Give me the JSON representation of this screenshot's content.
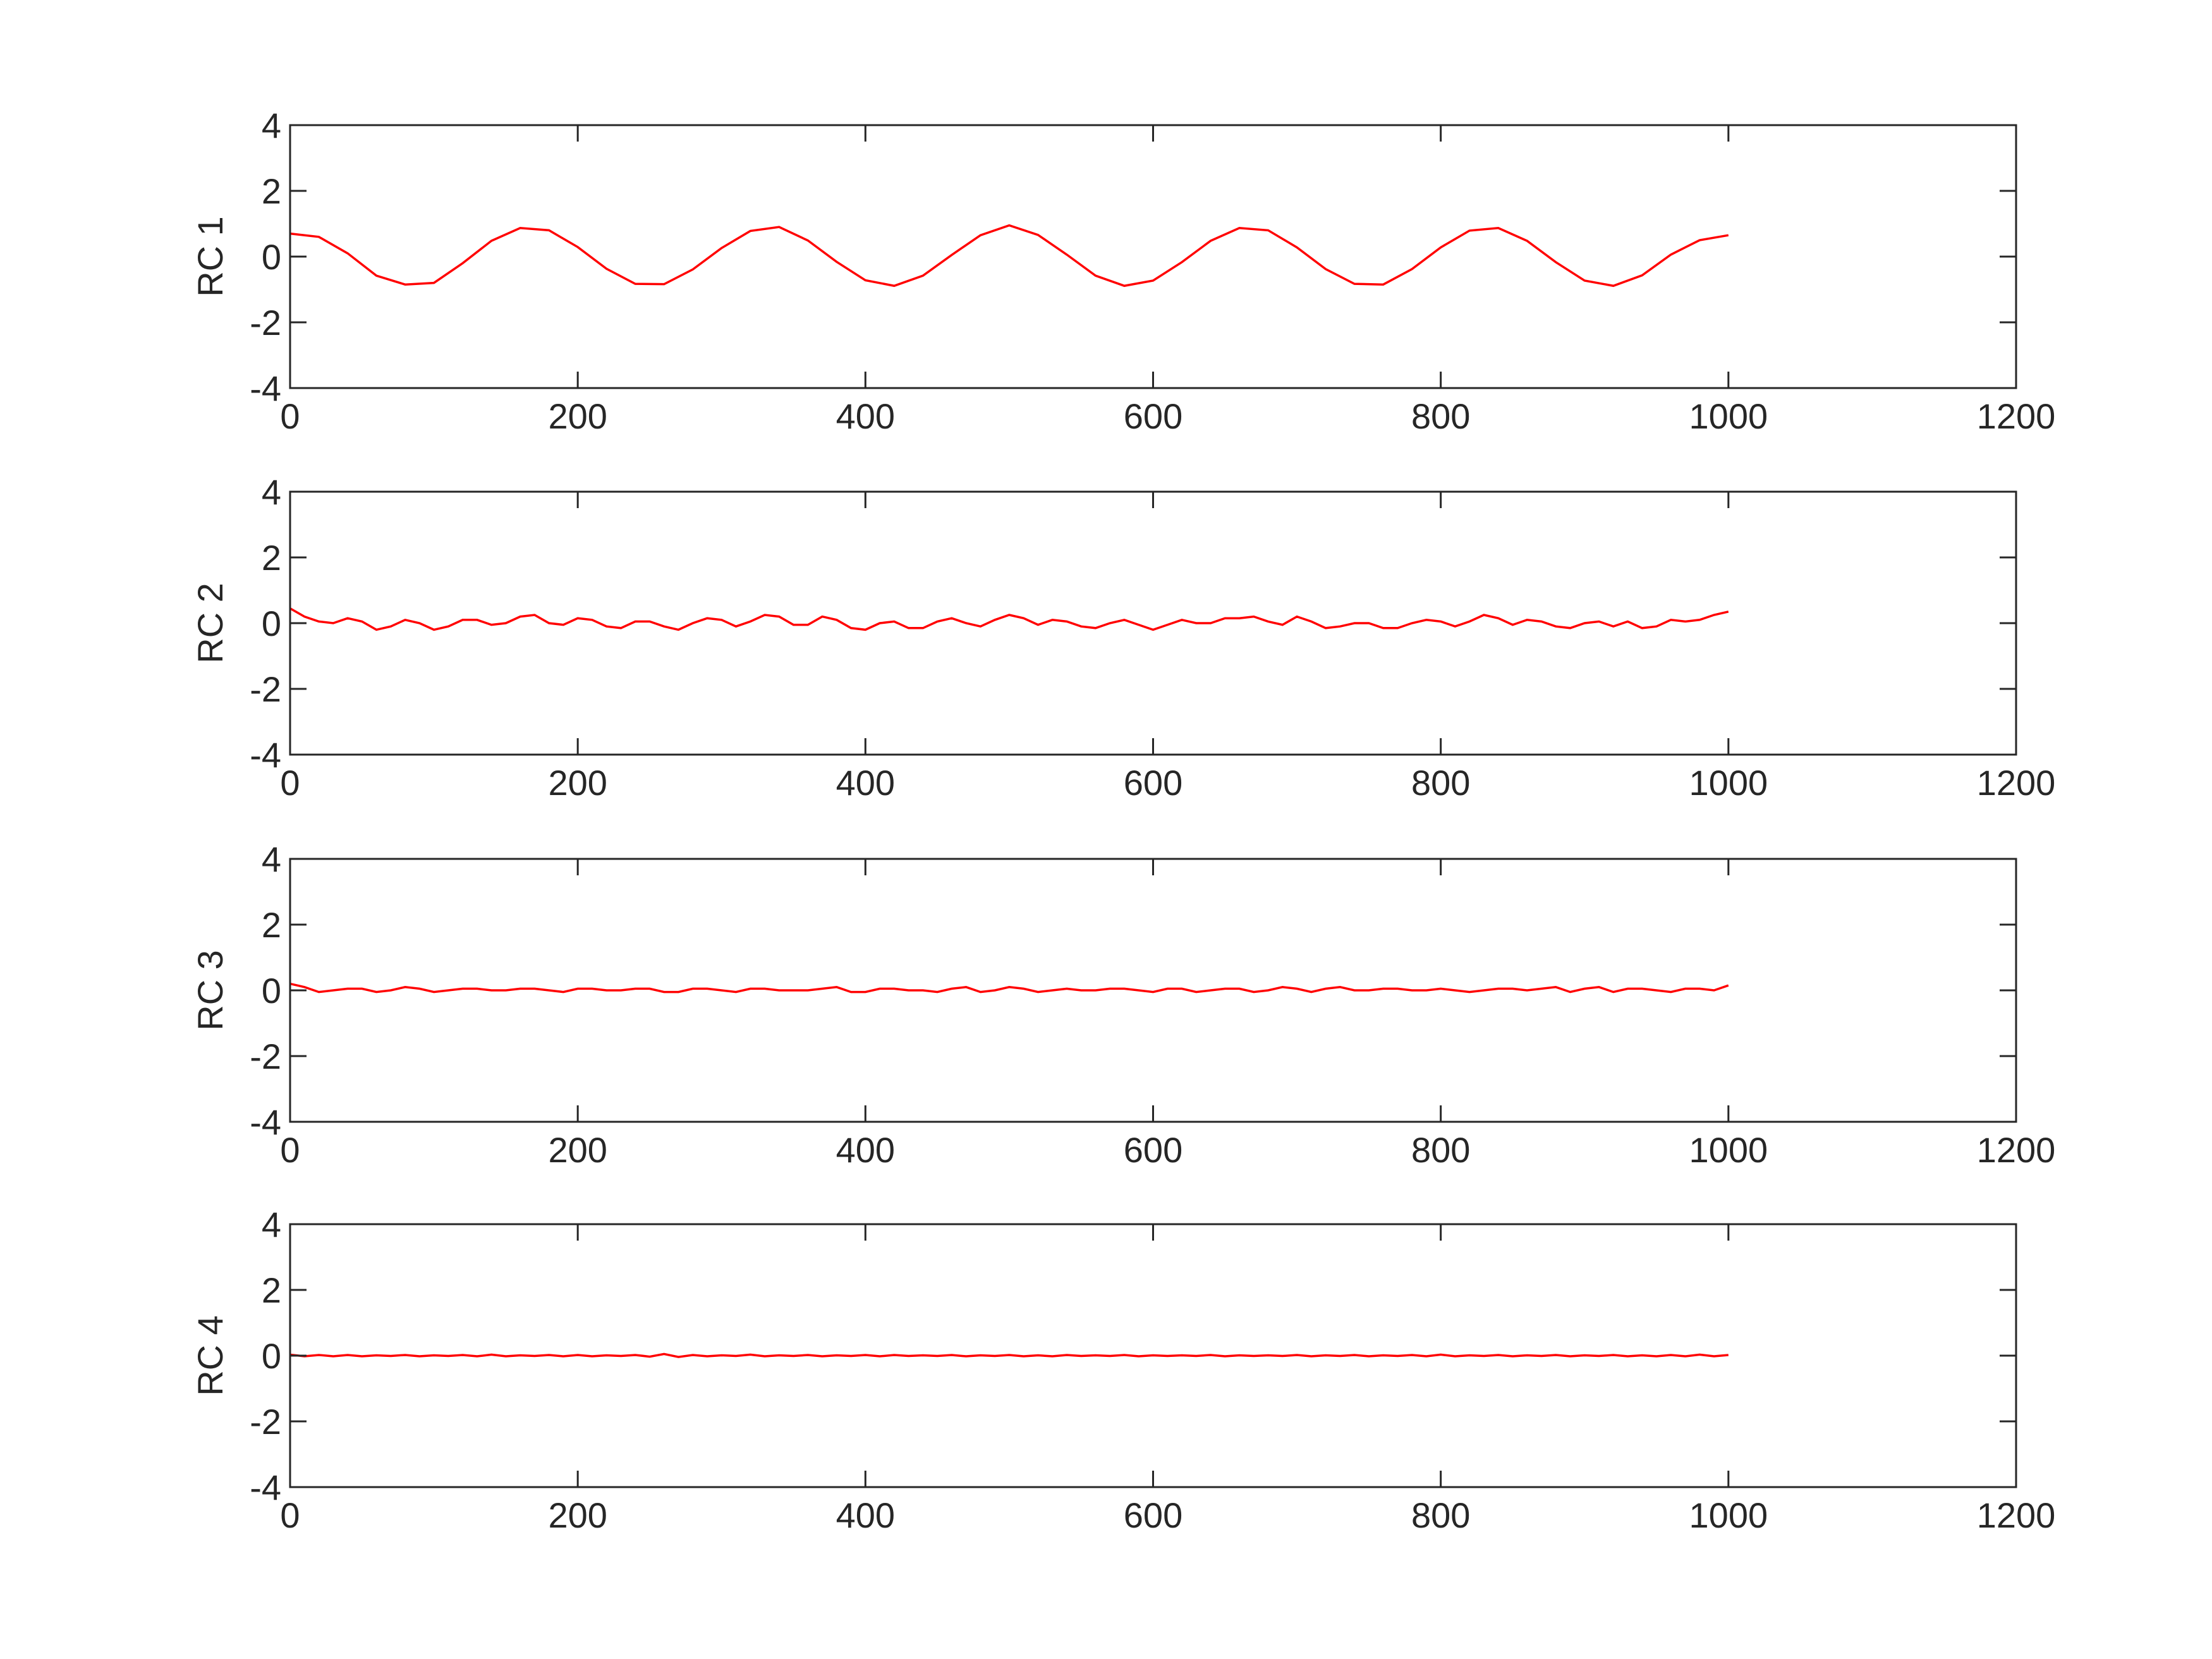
{
  "chart_data": [
    {
      "type": "line",
      "ylabel": "RC 1",
      "color": "#ff0000",
      "x": [
        0,
        20,
        40,
        60,
        80,
        100,
        120,
        140,
        160,
        180,
        200,
        220,
        240,
        260,
        280,
        300,
        320,
        340,
        360,
        380,
        400,
        420,
        440,
        460,
        480,
        500,
        520,
        540,
        560,
        580,
        600,
        620,
        640,
        660,
        680,
        700,
        720,
        740,
        760,
        780,
        800,
        820,
        840,
        860,
        880,
        900,
        920,
        940,
        960,
        980,
        1000
      ],
      "values": [
        0.7,
        0.6,
        0.1,
        -0.58,
        -0.85,
        -0.8,
        -0.2,
        0.48,
        0.87,
        0.8,
        0.29,
        -0.37,
        -0.83,
        -0.84,
        -0.39,
        0.26,
        0.78,
        0.9,
        0.49,
        -0.16,
        -0.72,
        -0.89,
        -0.58,
        0.05,
        0.65,
        0.95,
        0.66,
        0.06,
        -0.58,
        -0.89,
        -0.73,
        -0.17,
        0.48,
        0.87,
        0.8,
        0.28,
        -0.38,
        -0.83,
        -0.85,
        -0.38,
        0.28,
        0.79,
        0.87,
        0.48,
        -0.17,
        -0.73,
        -0.89,
        -0.57,
        0.06,
        0.5,
        0.65
      ],
      "xlim": [
        0,
        1200
      ],
      "xticks": [
        0,
        200,
        400,
        600,
        800,
        1000,
        1200
      ],
      "ylim": [
        -4,
        4
      ],
      "yticks": [
        -4,
        -2,
        0,
        2,
        4
      ]
    },
    {
      "type": "line",
      "ylabel": "RC 2",
      "color": "#ff0000",
      "x": [
        0,
        10,
        20,
        30,
        40,
        50,
        60,
        70,
        80,
        90,
        100,
        110,
        120,
        130,
        140,
        150,
        160,
        170,
        180,
        190,
        200,
        210,
        220,
        230,
        240,
        250,
        260,
        270,
        280,
        290,
        300,
        310,
        320,
        330,
        340,
        350,
        360,
        370,
        380,
        390,
        400,
        410,
        420,
        430,
        440,
        450,
        460,
        470,
        480,
        490,
        500,
        510,
        520,
        530,
        540,
        550,
        560,
        570,
        580,
        590,
        600,
        610,
        620,
        630,
        640,
        650,
        660,
        670,
        680,
        690,
        700,
        710,
        720,
        730,
        740,
        750,
        760,
        770,
        780,
        790,
        800,
        810,
        820,
        830,
        840,
        850,
        860,
        870,
        880,
        890,
        900,
        910,
        920,
        930,
        940,
        950,
        960,
        970,
        980,
        990,
        1000
      ],
      "values": [
        0.45,
        0.2,
        0.05,
        0.0,
        0.15,
        0.05,
        -0.2,
        -0.1,
        0.1,
        0.0,
        -0.2,
        -0.1,
        0.1,
        0.1,
        -0.05,
        0.0,
        0.2,
        0.25,
        0.0,
        -0.05,
        0.15,
        0.1,
        -0.1,
        -0.15,
        0.05,
        0.05,
        -0.1,
        -0.2,
        0.0,
        0.15,
        0.1,
        -0.1,
        0.05,
        0.25,
        0.2,
        -0.05,
        -0.05,
        0.2,
        0.1,
        -0.15,
        -0.2,
        0.0,
        0.05,
        -0.15,
        -0.15,
        0.05,
        0.15,
        0.0,
        -0.1,
        0.1,
        0.25,
        0.15,
        -0.05,
        0.1,
        0.05,
        -0.1,
        -0.15,
        0.0,
        0.1,
        -0.05,
        -0.2,
        -0.05,
        0.1,
        0.0,
        0.0,
        0.15,
        0.15,
        0.2,
        0.05,
        -0.05,
        0.2,
        0.05,
        -0.15,
        -0.1,
        0.0,
        0.0,
        -0.15,
        -0.15,
        0.0,
        0.1,
        0.05,
        -0.1,
        0.05,
        0.25,
        0.15,
        -0.05,
        0.1,
        0.05,
        -0.1,
        -0.15,
        0.0,
        0.05,
        -0.1,
        0.05,
        -0.15,
        -0.1,
        0.1,
        0.05,
        0.1,
        0.25,
        0.35
      ],
      "xlim": [
        0,
        1200
      ],
      "xticks": [
        0,
        200,
        400,
        600,
        800,
        1000,
        1200
      ],
      "ylim": [
        -4,
        4
      ],
      "yticks": [
        -4,
        -2,
        0,
        2,
        4
      ]
    },
    {
      "type": "line",
      "ylabel": "RC 3",
      "color": "#ff0000",
      "x": [
        0,
        10,
        20,
        30,
        40,
        50,
        60,
        70,
        80,
        90,
        100,
        110,
        120,
        130,
        140,
        150,
        160,
        170,
        180,
        190,
        200,
        210,
        220,
        230,
        240,
        250,
        260,
        270,
        280,
        290,
        300,
        310,
        320,
        330,
        340,
        350,
        360,
        370,
        380,
        390,
        400,
        410,
        420,
        430,
        440,
        450,
        460,
        470,
        480,
        490,
        500,
        510,
        520,
        530,
        540,
        550,
        560,
        570,
        580,
        590,
        600,
        610,
        620,
        630,
        640,
        650,
        660,
        670,
        680,
        690,
        700,
        710,
        720,
        730,
        740,
        750,
        760,
        770,
        780,
        790,
        800,
        810,
        820,
        830,
        840,
        850,
        860,
        870,
        880,
        890,
        900,
        910,
        920,
        930,
        940,
        950,
        960,
        970,
        980,
        990,
        1000
      ],
      "values": [
        0.2,
        0.1,
        -0.05,
        0.0,
        0.05,
        0.05,
        -0.05,
        0.0,
        0.1,
        0.05,
        -0.05,
        0.0,
        0.05,
        0.05,
        0.0,
        0.0,
        0.05,
        0.05,
        0.0,
        -0.05,
        0.05,
        0.05,
        0.0,
        0.0,
        0.05,
        0.05,
        -0.05,
        -0.05,
        0.05,
        0.05,
        0.0,
        -0.05,
        0.05,
        0.05,
        0.0,
        0.0,
        0.0,
        0.05,
        0.1,
        -0.05,
        -0.05,
        0.05,
        0.05,
        0.0,
        0.0,
        -0.05,
        0.05,
        0.1,
        -0.05,
        0.0,
        0.1,
        0.05,
        -0.05,
        0.0,
        0.05,
        0.0,
        0.0,
        0.05,
        0.05,
        0.0,
        -0.05,
        0.05,
        0.05,
        -0.05,
        0.0,
        0.05,
        0.05,
        -0.05,
        0.0,
        0.1,
        0.05,
        -0.05,
        0.05,
        0.1,
        0.0,
        0.0,
        0.05,
        0.05,
        0.0,
        0.0,
        0.05,
        0.0,
        -0.05,
        0.0,
        0.05,
        0.05,
        0.0,
        0.05,
        0.1,
        -0.05,
        0.05,
        0.1,
        -0.05,
        0.05,
        0.05,
        0.0,
        -0.05,
        0.05,
        0.05,
        0.0,
        0.15
      ],
      "xlim": [
        0,
        1200
      ],
      "xticks": [
        0,
        200,
        400,
        600,
        800,
        1000,
        1200
      ],
      "ylim": [
        -4,
        4
      ],
      "yticks": [
        -4,
        -2,
        0,
        2,
        4
      ]
    },
    {
      "type": "line",
      "ylabel": "RC 4",
      "color": "#ff0000",
      "x": [
        0,
        10,
        20,
        30,
        40,
        50,
        60,
        70,
        80,
        90,
        100,
        110,
        120,
        130,
        140,
        150,
        160,
        170,
        180,
        190,
        200,
        210,
        220,
        230,
        240,
        250,
        260,
        270,
        280,
        290,
        300,
        310,
        320,
        330,
        340,
        350,
        360,
        370,
        380,
        390,
        400,
        410,
        420,
        430,
        440,
        450,
        460,
        470,
        480,
        490,
        500,
        510,
        520,
        530,
        540,
        550,
        560,
        570,
        580,
        590,
        600,
        610,
        620,
        630,
        640,
        650,
        660,
        670,
        680,
        690,
        700,
        710,
        720,
        730,
        740,
        750,
        760,
        770,
        780,
        790,
        800,
        810,
        820,
        830,
        840,
        850,
        860,
        870,
        880,
        890,
        900,
        910,
        920,
        930,
        940,
        950,
        960,
        970,
        980,
        990,
        1000
      ],
      "values": [
        0.03,
        -0.02,
        0.02,
        -0.02,
        0.02,
        -0.02,
        0.01,
        -0.01,
        0.02,
        -0.02,
        0.01,
        -0.01,
        0.02,
        -0.02,
        0.03,
        -0.02,
        0.01,
        -0.01,
        0.02,
        -0.02,
        0.02,
        -0.02,
        0.01,
        -0.01,
        0.02,
        -0.03,
        0.05,
        -0.04,
        0.02,
        -0.02,
        0.01,
        -0.01,
        0.03,
        -0.02,
        0.01,
        -0.01,
        0.02,
        -0.02,
        0.01,
        -0.01,
        0.02,
        -0.02,
        0.02,
        -0.01,
        0.01,
        -0.01,
        0.02,
        -0.02,
        0.01,
        -0.01,
        0.02,
        -0.02,
        0.01,
        -0.02,
        0.02,
        -0.01,
        0.01,
        -0.01,
        0.02,
        -0.02,
        0.01,
        -0.01,
        0.01,
        -0.01,
        0.02,
        -0.02,
        0.01,
        -0.01,
        0.01,
        -0.01,
        0.02,
        -0.02,
        0.01,
        -0.01,
        0.02,
        -0.02,
        0.01,
        -0.01,
        0.02,
        -0.02,
        0.03,
        -0.02,
        0.01,
        -0.01,
        0.02,
        -0.02,
        0.01,
        -0.01,
        0.02,
        -0.02,
        0.01,
        -0.01,
        0.02,
        -0.02,
        0.01,
        -0.02,
        0.02,
        -0.02,
        0.03,
        -0.02,
        0.02
      ],
      "xlim": [
        0,
        1200
      ],
      "xticks": [
        0,
        200,
        400,
        600,
        800,
        1000,
        1200
      ],
      "ylim": [
        -4,
        4
      ],
      "yticks": [
        -4,
        -2,
        0,
        2,
        4
      ]
    }
  ]
}
